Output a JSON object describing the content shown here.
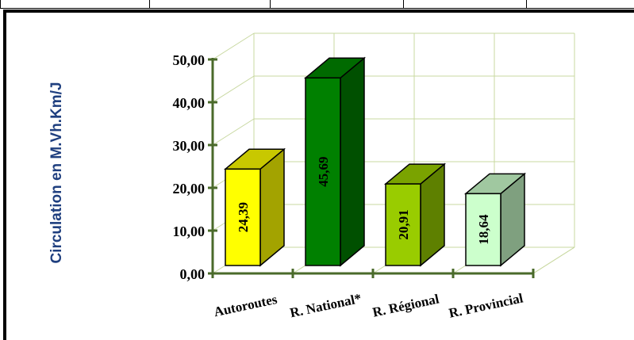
{
  "chart_data": {
    "type": "bar",
    "title": "",
    "xlabel": "",
    "ylabel": "Circulation en M.Vh.Km/J",
    "categories": [
      "Autoroutes",
      "R. National*",
      "R. Régional",
      "R. Provincial"
    ],
    "values": [
      24.39,
      45.69,
      20.91,
      18.64
    ],
    "value_labels": [
      "24,39",
      "45,69",
      "20,91",
      "18,64"
    ],
    "ylim": [
      0,
      50
    ],
    "yticks": [
      0,
      10,
      20,
      30,
      40,
      50
    ],
    "ytick_labels": [
      "0,00",
      "10,00",
      "20,00",
      "30,00",
      "40,00",
      "50,00"
    ],
    "grid": true,
    "three_d": true,
    "colors": {
      "bars": [
        {
          "front": "#ffff00",
          "side": "#a3a300",
          "top": "#c8c800"
        },
        {
          "front": "#008000",
          "side": "#005000",
          "top": "#006a00"
        },
        {
          "front": "#99cc00",
          "side": "#5e8000",
          "top": "#7aa300"
        },
        {
          "front": "#ccffcc",
          "side": "#7fa07f",
          "top": "#a0c8a0"
        }
      ],
      "axis": "#4a6a2a",
      "grid": "#c8d8a0",
      "ylabel": "#1f3f7f"
    }
  }
}
